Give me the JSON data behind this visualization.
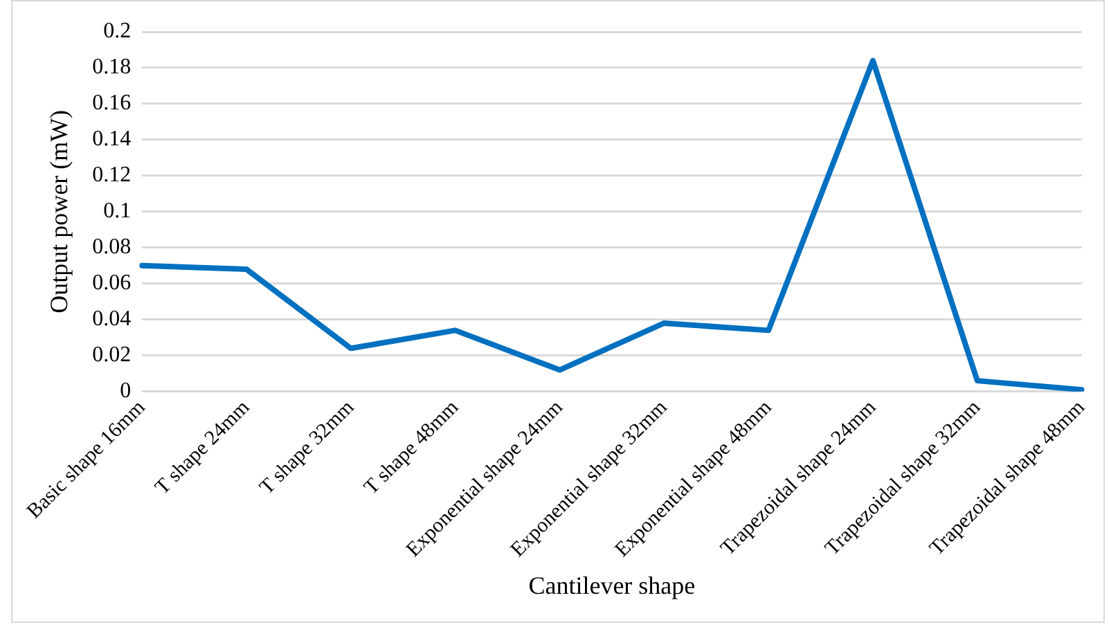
{
  "chart_data": {
    "type": "line",
    "xlabel": "Cantilever shape",
    "ylabel": "Output power (mW)",
    "categories": [
      "Basic shape 16mm",
      "T shape 24mm",
      "T shape 32mm",
      "T shape 48mm",
      "Exponential shape 24mm",
      "Exponential shape 32mm",
      "Exponential shape 48mm",
      "Trapezoidal shape 24mm",
      "Trapezoidal shape 32mm",
      "Trapezoidal shape 48mm"
    ],
    "series": [
      {
        "color": "#0070c0",
        "values": [
          0.07,
          0.068,
          0.024,
          0.034,
          0.012,
          0.038,
          0.034,
          0.184,
          0.006,
          0.001
        ]
      }
    ],
    "ylim": [
      0,
      0.2
    ],
    "yticks": [
      0,
      0.02,
      0.04,
      0.06,
      0.08,
      0.1,
      0.12,
      0.14,
      0.16,
      0.18,
      0.2
    ],
    "grid": "y",
    "marker": "none",
    "line_style": "solid",
    "legend": false
  }
}
